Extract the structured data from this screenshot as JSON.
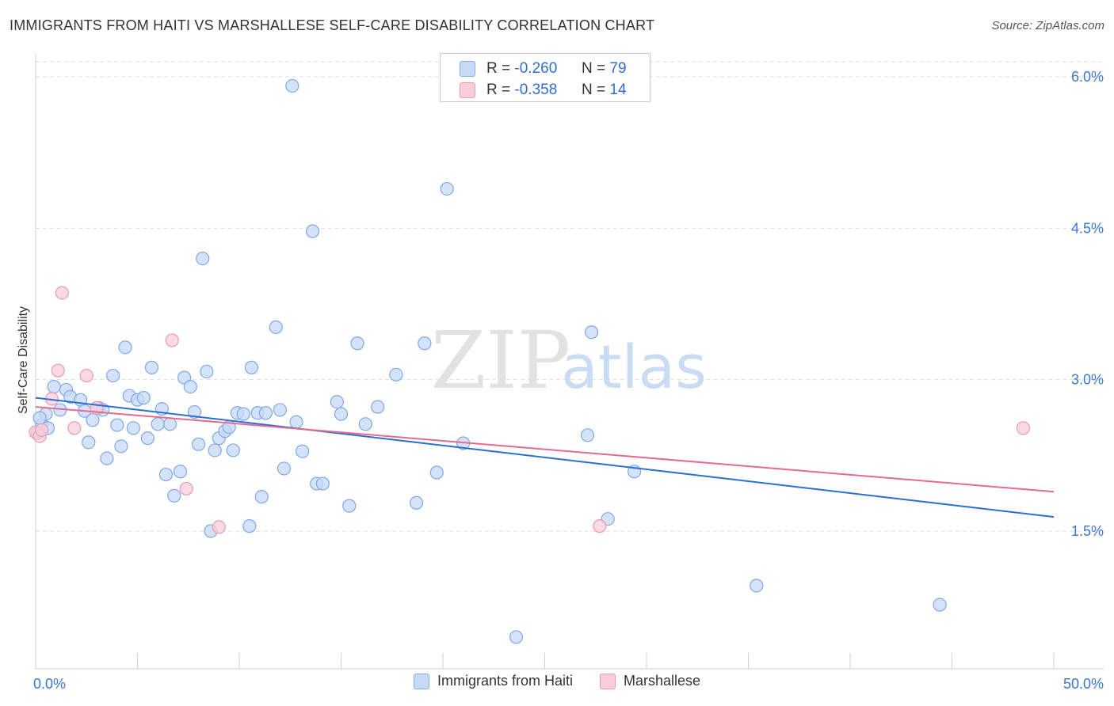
{
  "title": "IMMIGRANTS FROM HAITI VS MARSHALLESE SELF-CARE DISABILITY CORRELATION CHART",
  "source": "Source: ZipAtlas.com",
  "watermark": {
    "zip": "ZIP",
    "atlas": "atlas"
  },
  "stats": [
    {
      "r_label": "R =",
      "r_value": "-0.260",
      "n_label": "N =",
      "n_value": "79"
    },
    {
      "r_label": "R =",
      "r_value": "-0.358",
      "n_label": "N =",
      "n_value": "14"
    }
  ],
  "legend": {
    "blue_label": "Immigrants from Haiti",
    "pink_label": "Marshallese"
  },
  "colors": {
    "blue_fill": "#c6d9f7",
    "blue_stroke": "#7fa8e6",
    "blue_line": "#2a6fd3",
    "pink_fill": "#f9cdd9",
    "pink_stroke": "#e89ab2",
    "pink_line": "#e46a94",
    "axis_text": "#3a78d0",
    "grid": "#dddddd"
  },
  "chart_data": {
    "type": "scatter",
    "title": "IMMIGRANTS FROM HAITI VS MARSHALLESE SELF-CARE DISABILITY CORRELATION CHART",
    "xlabel": "",
    "ylabel": "Self-Care Disability",
    "xlim": [
      0,
      50
    ],
    "ylim": [
      0,
      6.2
    ],
    "x_tick_labels": [
      {
        "value": 0,
        "label": "0.0%"
      },
      {
        "value": 50,
        "label": "50.0%"
      }
    ],
    "y_ticks": [
      {
        "value": 1.5,
        "label": "1.5%"
      },
      {
        "value": 3.0,
        "label": "3.0%"
      },
      {
        "value": 4.5,
        "label": "4.5%"
      },
      {
        "value": 6.0,
        "label": "6.0%"
      }
    ],
    "series": [
      {
        "name": "Immigrants from Haiti",
        "color": "blue",
        "trend": {
          "x": [
            0,
            50
          ],
          "y": [
            2.82,
            1.64
          ]
        },
        "points": [
          [
            0.1,
            2.47
          ],
          [
            0.3,
            2.55
          ],
          [
            0.5,
            2.66
          ],
          [
            0.6,
            2.52
          ],
          [
            0.9,
            2.93
          ],
          [
            1.2,
            2.7
          ],
          [
            1.5,
            2.9
          ],
          [
            1.7,
            2.83
          ],
          [
            2.2,
            2.8
          ],
          [
            2.4,
            2.69
          ],
          [
            2.6,
            2.38
          ],
          [
            2.8,
            2.6
          ],
          [
            3.1,
            2.72
          ],
          [
            3.3,
            2.7
          ],
          [
            3.5,
            2.22
          ],
          [
            3.8,
            3.04
          ],
          [
            4.0,
            2.55
          ],
          [
            4.2,
            2.34
          ],
          [
            4.4,
            3.32
          ],
          [
            4.6,
            2.84
          ],
          [
            4.8,
            2.52
          ],
          [
            5.0,
            2.8
          ],
          [
            5.3,
            2.82
          ],
          [
            5.5,
            2.42
          ],
          [
            5.7,
            3.12
          ],
          [
            6.0,
            2.56
          ],
          [
            6.2,
            2.71
          ],
          [
            6.4,
            2.06
          ],
          [
            6.6,
            2.56
          ],
          [
            6.8,
            1.85
          ],
          [
            7.1,
            2.09
          ],
          [
            7.3,
            3.02
          ],
          [
            7.6,
            2.93
          ],
          [
            7.8,
            2.68
          ],
          [
            8.0,
            2.36
          ],
          [
            8.2,
            4.2
          ],
          [
            8.4,
            3.08
          ],
          [
            8.6,
            1.5
          ],
          [
            8.8,
            2.3
          ],
          [
            9.0,
            2.42
          ],
          [
            9.3,
            2.49
          ],
          [
            9.5,
            2.53
          ],
          [
            9.7,
            2.3
          ],
          [
            9.9,
            2.67
          ],
          [
            10.2,
            2.66
          ],
          [
            10.5,
            1.55
          ],
          [
            10.6,
            3.12
          ],
          [
            10.9,
            2.67
          ],
          [
            11.1,
            1.84
          ],
          [
            11.3,
            2.67
          ],
          [
            11.8,
            3.52
          ],
          [
            12.0,
            2.7
          ],
          [
            12.2,
            2.12
          ],
          [
            12.6,
            5.91
          ],
          [
            12.8,
            2.58
          ],
          [
            13.1,
            2.29
          ],
          [
            13.6,
            4.47
          ],
          [
            13.8,
            1.97
          ],
          [
            14.1,
            1.97
          ],
          [
            14.8,
            2.78
          ],
          [
            15.0,
            2.66
          ],
          [
            15.4,
            1.75
          ],
          [
            15.8,
            3.36
          ],
          [
            16.2,
            2.56
          ],
          [
            16.8,
            2.73
          ],
          [
            17.7,
            3.05
          ],
          [
            18.7,
            1.78
          ],
          [
            19.1,
            3.36
          ],
          [
            19.7,
            2.08
          ],
          [
            20.2,
            4.89
          ],
          [
            21.0,
            2.37
          ],
          [
            23.6,
            0.45
          ],
          [
            27.1,
            2.45
          ],
          [
            27.3,
            3.47
          ],
          [
            28.1,
            1.62
          ],
          [
            29.4,
            2.09
          ],
          [
            35.4,
            0.96
          ],
          [
            44.4,
            0.77
          ],
          [
            0.2,
            2.62
          ]
        ]
      },
      {
        "name": "Marshallese",
        "color": "pink",
        "trend": {
          "x": [
            0,
            50
          ],
          "y": [
            2.73,
            1.89
          ]
        },
        "points": [
          [
            0.0,
            2.48
          ],
          [
            0.2,
            2.44
          ],
          [
            0.8,
            2.81
          ],
          [
            1.1,
            3.09
          ],
          [
            1.3,
            3.86
          ],
          [
            1.9,
            2.52
          ],
          [
            2.5,
            3.04
          ],
          [
            3.0,
            2.72
          ],
          [
            6.7,
            3.39
          ],
          [
            7.4,
            1.92
          ],
          [
            9.0,
            1.54
          ],
          [
            27.7,
            1.55
          ],
          [
            48.5,
            2.52
          ],
          [
            0.3,
            2.5
          ]
        ]
      }
    ]
  }
}
